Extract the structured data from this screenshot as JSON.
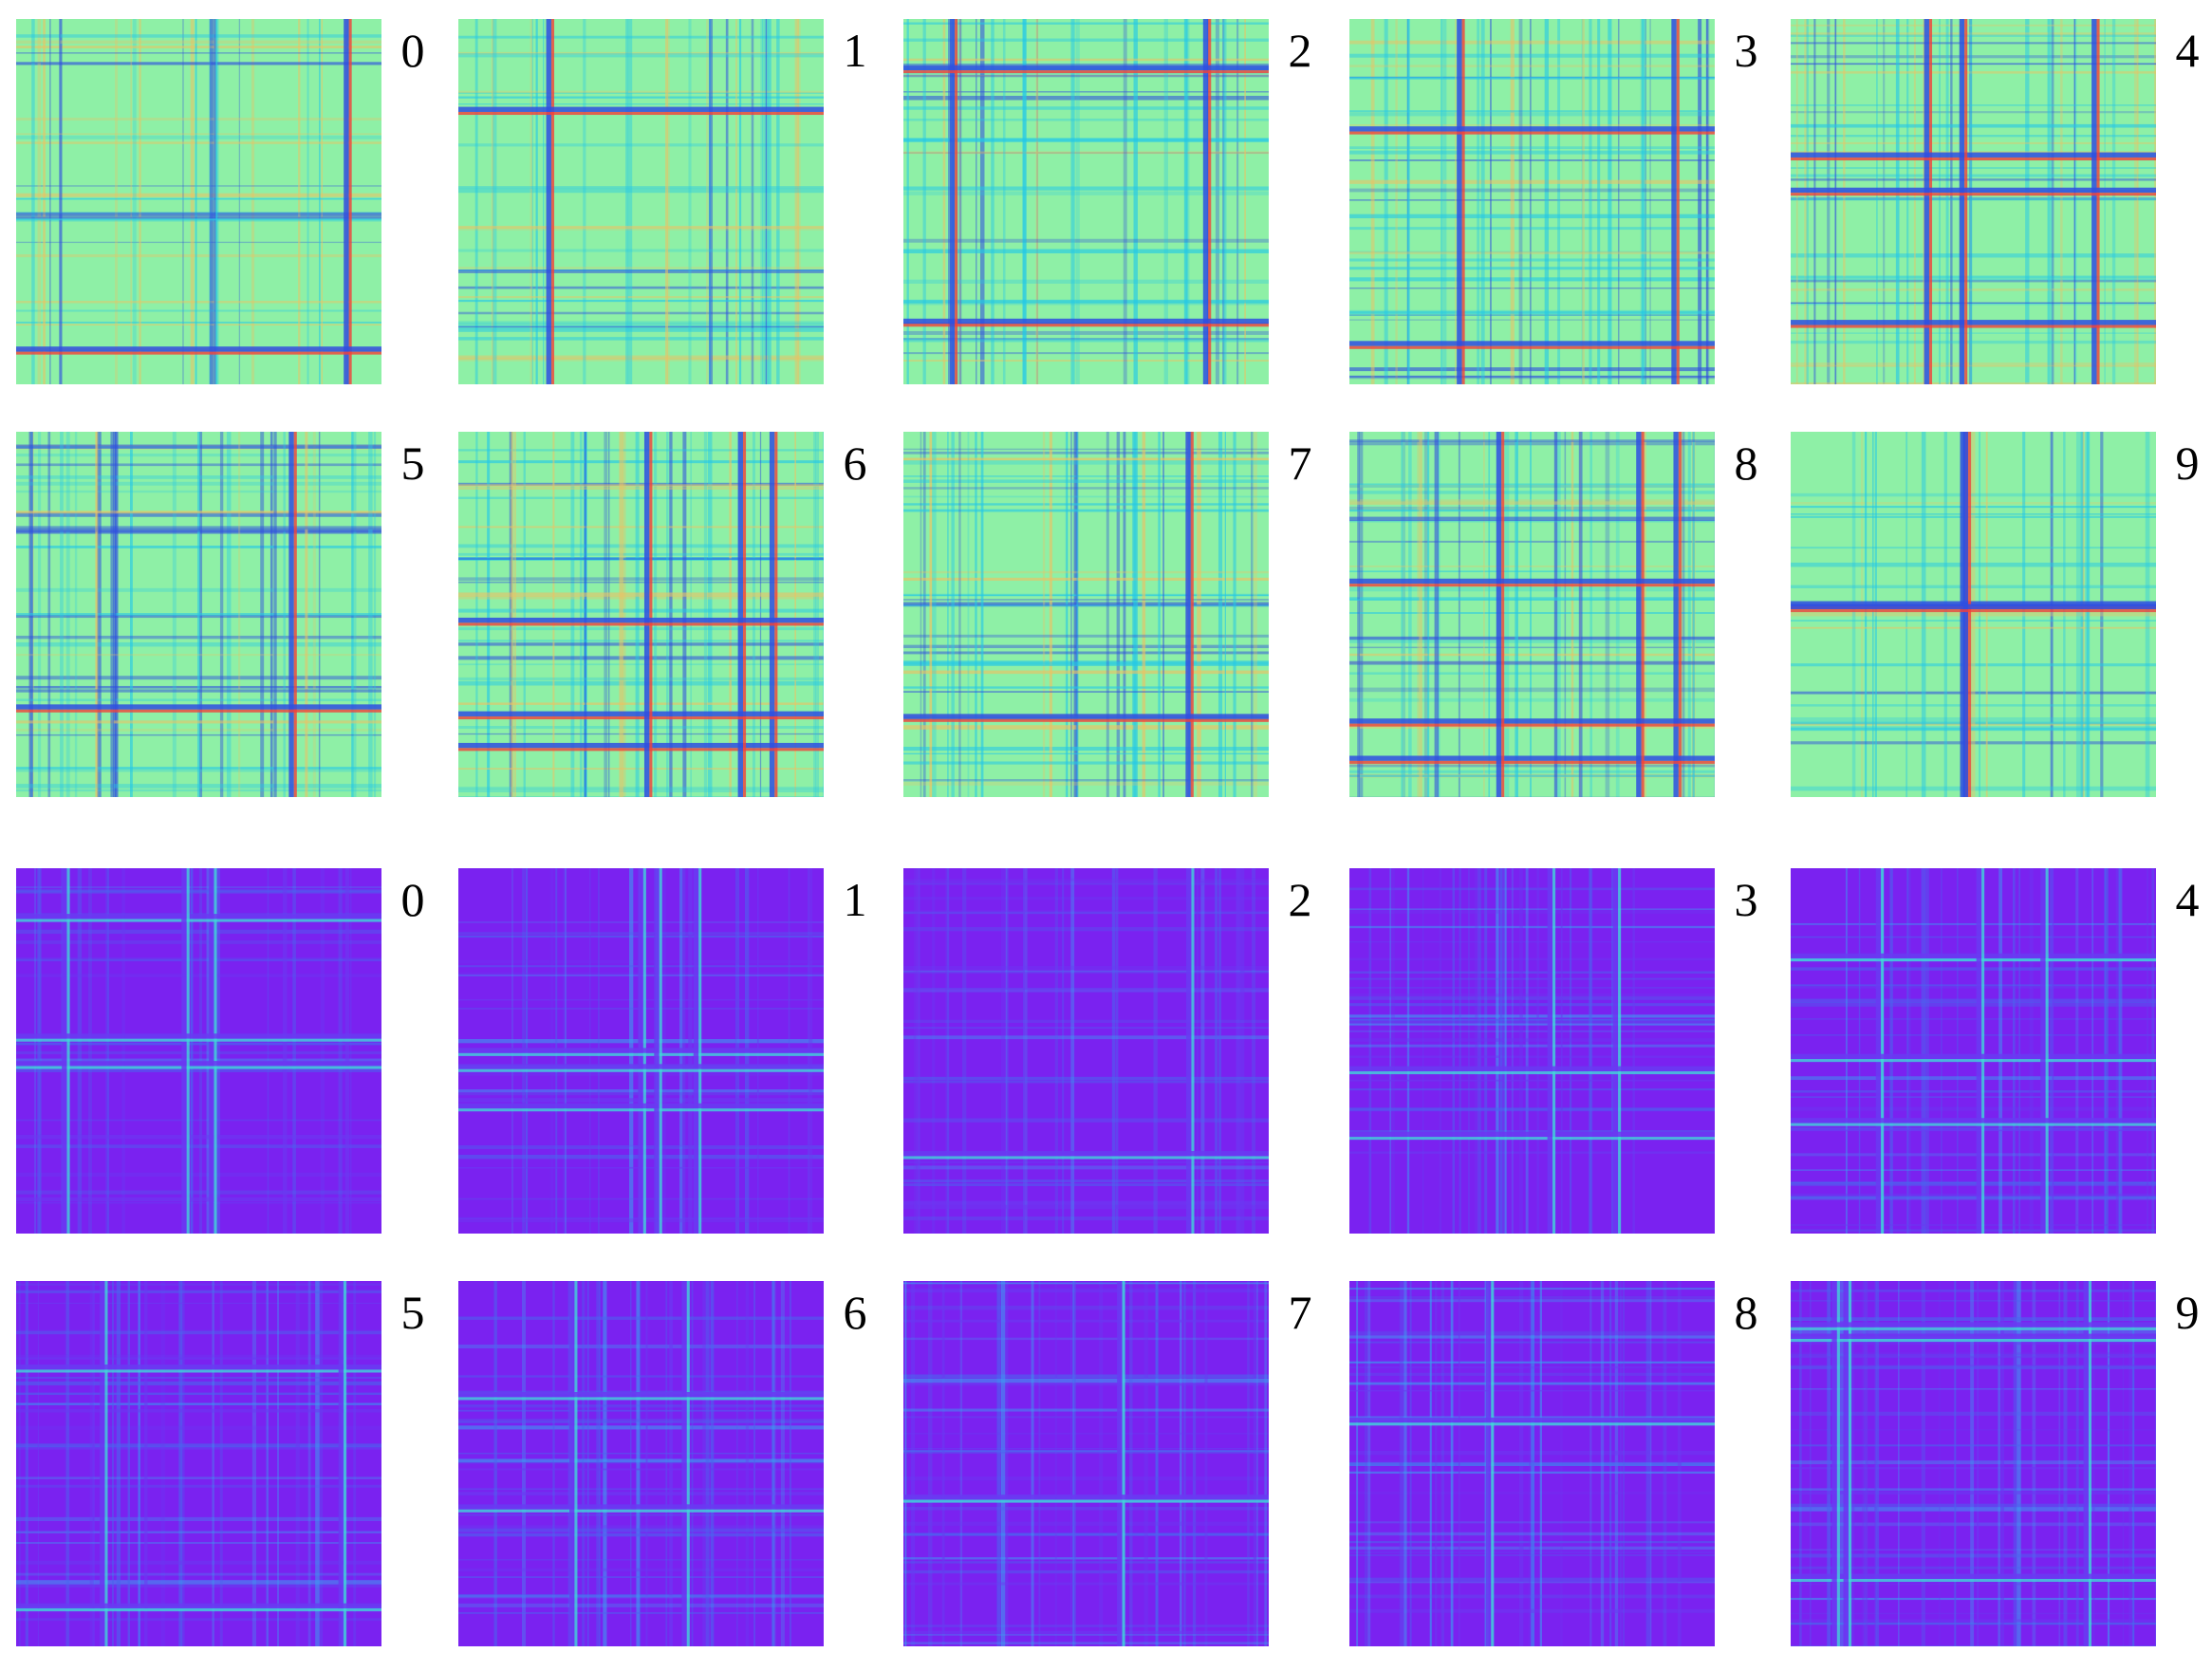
{
  "groups": [
    {
      "scheme": "rainbow",
      "colors": {
        "base": "#8ef0a6",
        "mid": "#22c8e8",
        "low": "#2f4fe0",
        "high": "#f2403a",
        "warm": "#f0c060"
      },
      "rows": [
        {
          "panels": [
            {
              "label": "0"
            },
            {
              "label": "1"
            },
            {
              "label": "2"
            },
            {
              "label": "3"
            },
            {
              "label": "4"
            }
          ]
        },
        {
          "panels": [
            {
              "label": "5"
            },
            {
              "label": "6"
            },
            {
              "label": "7"
            },
            {
              "label": "8"
            },
            {
              "label": "9"
            }
          ]
        }
      ]
    },
    {
      "scheme": "purple",
      "colors": {
        "base": "#7a22f0",
        "mid": "#4b64ee",
        "low": "#6a3af2",
        "high": "#40d8d8",
        "warm": "#3aa0f0"
      },
      "rows": [
        {
          "panels": [
            {
              "label": "0"
            },
            {
              "label": "1"
            },
            {
              "label": "2"
            },
            {
              "label": "3"
            },
            {
              "label": "4"
            }
          ]
        },
        {
          "panels": [
            {
              "label": "5"
            },
            {
              "label": "6"
            },
            {
              "label": "7"
            },
            {
              "label": "8"
            },
            {
              "label": "9"
            }
          ]
        }
      ]
    }
  ]
}
